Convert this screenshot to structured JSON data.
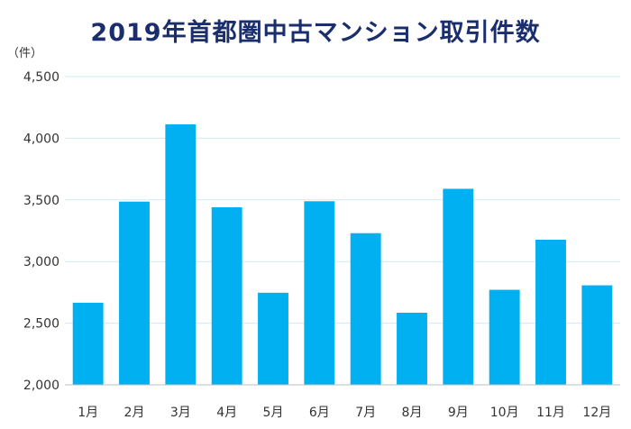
{
  "chart_data": {
    "type": "bar",
    "title": "2019年首都圏中古マンション取引件数",
    "ylabel": "（件）",
    "xlabel": "",
    "categories": [
      "1月",
      "2月",
      "3月",
      "4月",
      "5月",
      "6月",
      "7月",
      "8月",
      "9月",
      "10月",
      "11月",
      "12月"
    ],
    "values": [
      2666,
      3486,
      4113,
      3440,
      2747,
      3489,
      3230,
      2585,
      3590,
      2771,
      3177,
      2807
    ],
    "ylim": [
      2000,
      4500
    ],
    "yticks": [
      2000,
      2500,
      3000,
      3500,
      4000,
      4500
    ],
    "ytick_labels": [
      "2,000",
      "2,500",
      "3,000",
      "3,500",
      "4,000",
      "4,500"
    ],
    "grid": true,
    "legend": "none",
    "bar_color": "#00b0f0",
    "grid_color": "#cfeaf3"
  }
}
